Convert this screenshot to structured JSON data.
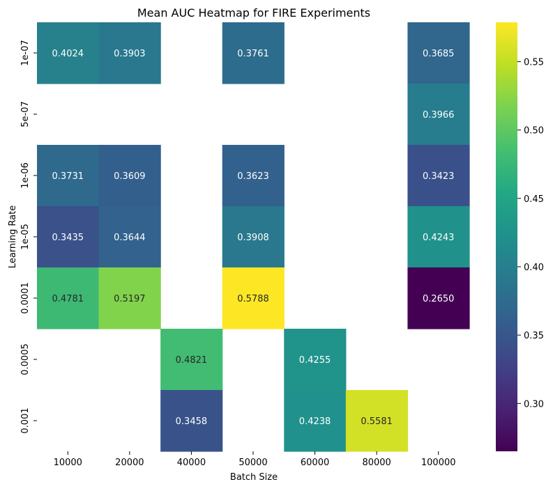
{
  "chart_data": {
    "type": "heatmap",
    "title": "Mean AUC Heatmap for FIRE Experiments",
    "xlabel": "Batch Size",
    "ylabel": "Learning Rate",
    "x_categories": [
      "10000",
      "20000",
      "40000",
      "50000",
      "60000",
      "80000",
      "100000"
    ],
    "y_categories": [
      "1e-07",
      "5e-07",
      "1e-06",
      "1e-05",
      "0.0001",
      "0.0005",
      "0.001"
    ],
    "values": [
      [
        0.4024,
        0.3903,
        null,
        0.3761,
        null,
        null,
        0.3685
      ],
      [
        null,
        null,
        null,
        null,
        null,
        null,
        0.3966
      ],
      [
        0.3731,
        0.3609,
        null,
        0.3623,
        null,
        null,
        0.3423
      ],
      [
        0.3435,
        0.3644,
        null,
        0.3908,
        null,
        null,
        0.4243
      ],
      [
        0.4781,
        0.5197,
        null,
        0.5788,
        null,
        null,
        0.265
      ],
      [
        null,
        null,
        0.4821,
        null,
        0.4255,
        null,
        null
      ],
      [
        null,
        null,
        0.3458,
        null,
        0.4238,
        0.5581,
        null
      ]
    ],
    "value_format": "4 decimals",
    "colormap": "viridis",
    "colorbar": {
      "vmin": 0.265,
      "vmax": 0.5788,
      "ticks": [
        0.3,
        0.35,
        0.4,
        0.45,
        0.5,
        0.55
      ],
      "tick_labels": [
        "0.30",
        "0.35",
        "0.40",
        "0.45",
        "0.50",
        "0.55"
      ]
    },
    "grid": false
  }
}
